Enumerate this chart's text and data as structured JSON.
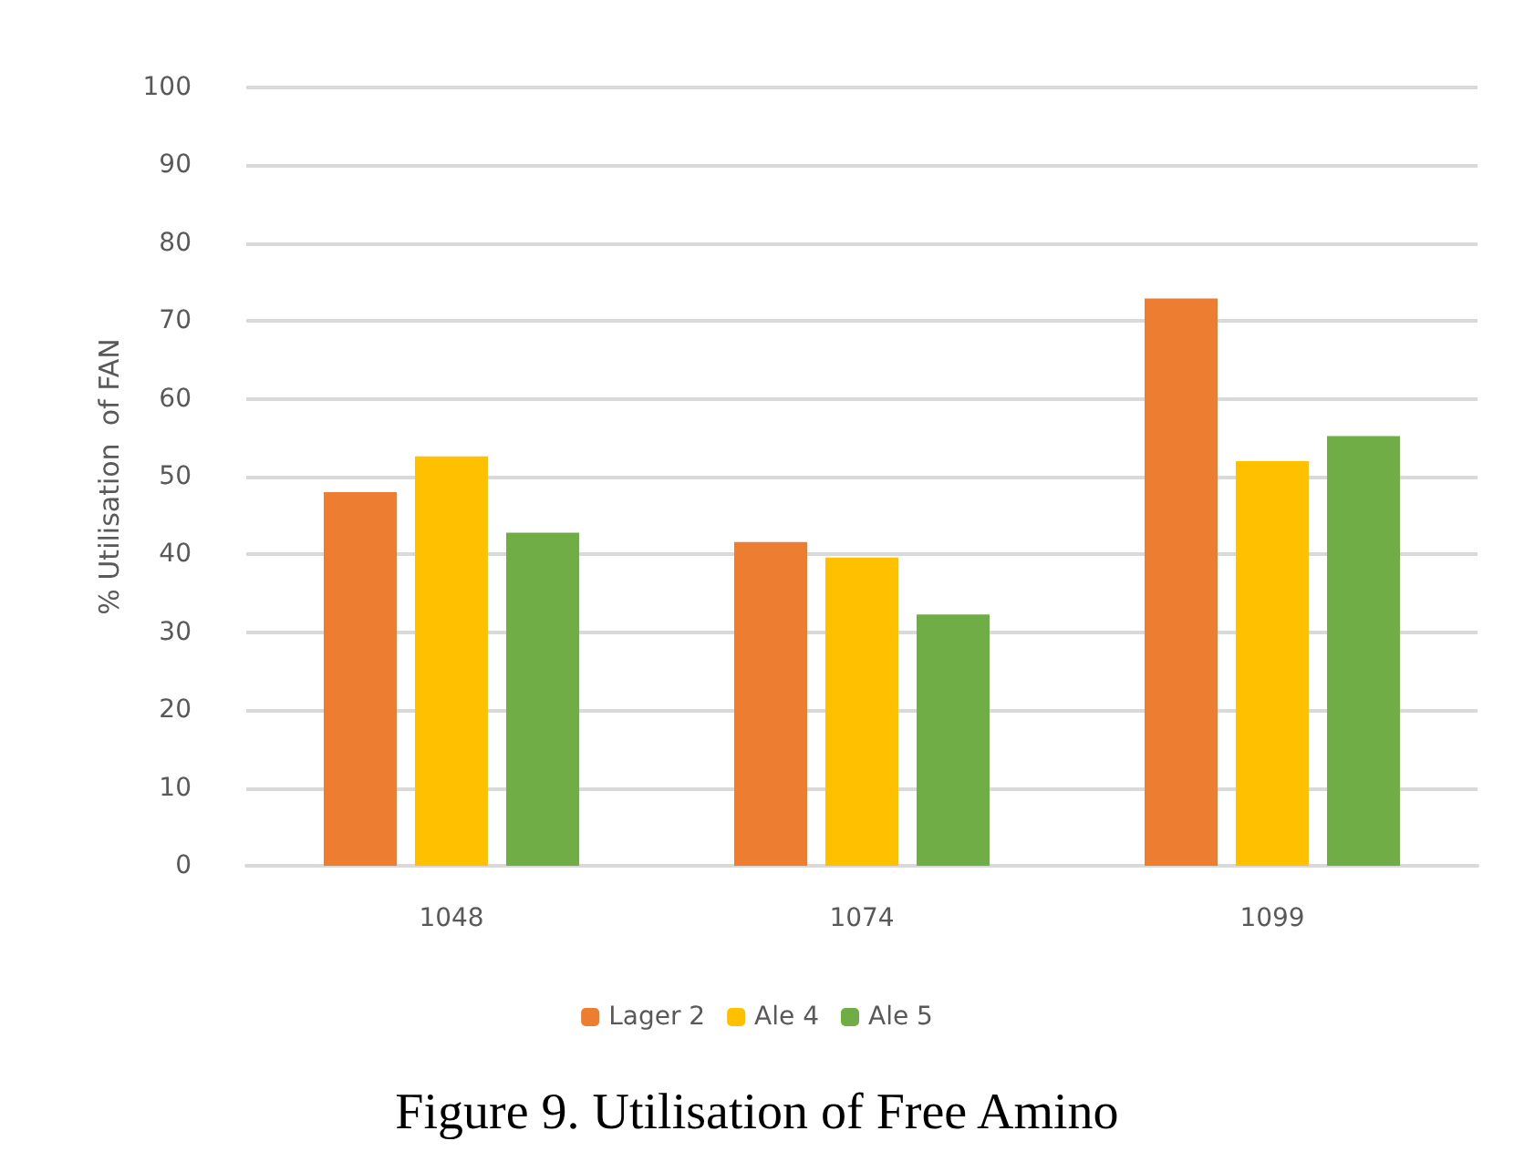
{
  "chart_data": {
    "type": "bar",
    "ylabel": "% Utilisation  of FAN",
    "categories": [
      "1048",
      "1074",
      "1099"
    ],
    "series": [
      {
        "name": "Lager 2",
        "color": "#ed7d31",
        "values": [
          48,
          41.6,
          72.9
        ]
      },
      {
        "name": "Ale 4",
        "color": "#ffc000",
        "values": [
          52.6,
          39.6,
          52
        ]
      },
      {
        "name": "Ale 5",
        "color": "#70ad47",
        "values": [
          42.8,
          32.3,
          55.2
        ]
      }
    ],
    "ylim": [
      0,
      100
    ],
    "yticks": [
      0,
      10,
      20,
      30,
      40,
      50,
      60,
      70,
      80,
      90,
      100
    ],
    "grid": "y",
    "legend": "bottom",
    "annotations": [
      "Figure 9. Utilisation of Free Amino"
    ]
  }
}
